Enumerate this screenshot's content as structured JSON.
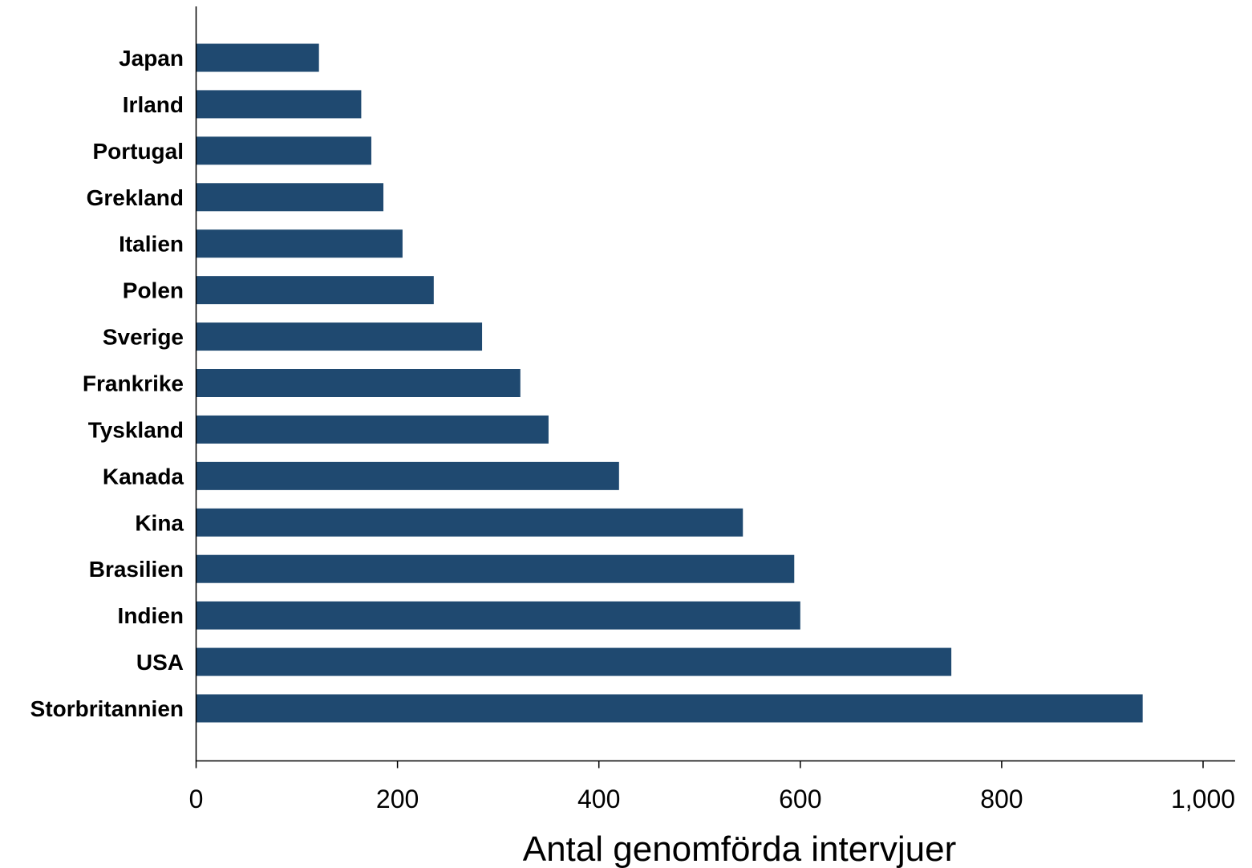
{
  "chart_data": {
    "type": "bar",
    "orientation": "horizontal",
    "categories": [
      "Japan",
      "Irland",
      "Portugal",
      "Grekland",
      "Italien",
      "Polen",
      "Sverige",
      "Frankrike",
      "Tyskland",
      "Kanada",
      "Kina",
      "Brasilien",
      "Indien",
      "USA",
      "Storbritannien"
    ],
    "values": [
      122,
      164,
      174,
      186,
      205,
      236,
      284,
      322,
      350,
      420,
      543,
      594,
      600,
      750,
      940
    ],
    "xlabel": "Antal genomförda intervjuer",
    "ylabel": "",
    "xlim": [
      0,
      1000
    ],
    "xticks": [
      0,
      200,
      400,
      600,
      800,
      1000
    ],
    "xtick_labels": [
      "0",
      "200",
      "400",
      "600",
      "800",
      "1,000"
    ],
    "grid": false,
    "bar_color": "#1f4970"
  }
}
